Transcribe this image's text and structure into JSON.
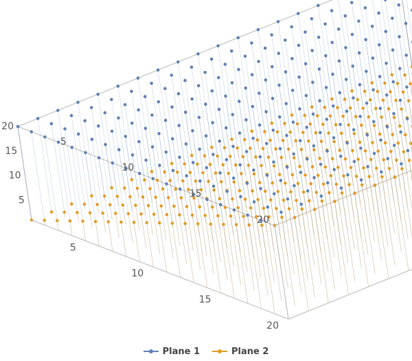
{
  "chart_data": {
    "type": "scatter3d",
    "title": "",
    "xlabel": "",
    "ylabel": "",
    "zlabel": "",
    "x_range": [
      1,
      20
    ],
    "y_range": [
      1,
      20
    ],
    "z_range": [
      1,
      20
    ],
    "grid": false,
    "legend_position": "bottom",
    "x_ticks": [
      "5",
      "10",
      "15",
      "20"
    ],
    "y_ticks": [
      "5",
      "10",
      "15",
      "20"
    ],
    "z_ticks": [
      "5",
      "10",
      "15",
      "20"
    ],
    "series": [
      {
        "name": "Plane 1",
        "color": "#5e81b5",
        "grid_x": [
          1,
          20
        ],
        "grid_y": [
          1,
          20
        ],
        "z": "constant 20"
      },
      {
        "name": "Plane 2",
        "color": "#e19c24",
        "grid_x": [
          1,
          20
        ],
        "grid_y": [
          1,
          20
        ],
        "z": "increases with y, from 1 at y=1 to 20 at y=20"
      }
    ]
  }
}
